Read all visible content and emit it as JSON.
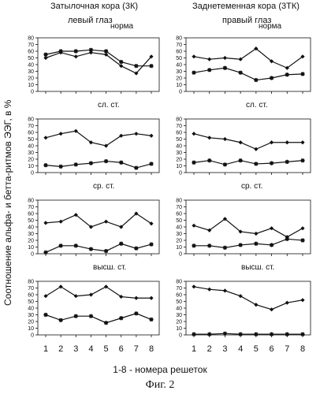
{
  "figure": {
    "columns": [
      {
        "title": "Затылочная кора (3К)",
        "eye": "левый глаз"
      },
      {
        "title": "Заднетеменная кора (3ТК)",
        "eye": "правый глаз"
      }
    ],
    "y_axis_label": "Соотношение альфа- и бетта-ритмов ЭЭГ, в %",
    "x_caption": "1-8 - номера решеток",
    "figure_caption": "Фиг. 2",
    "row_conditions": [
      "норма",
      "сл. ст.",
      "ср. ст.",
      "высш. ст."
    ]
  },
  "colors": {
    "line": "#111111",
    "background": "#ffffff"
  },
  "chart_data": [
    {
      "type": "line",
      "title": "норма",
      "column": "Затылочная кора (3К)",
      "x": [
        1,
        2,
        3,
        4,
        5,
        6,
        7,
        8
      ],
      "ylim": [
        0,
        80
      ],
      "yticks": [
        0,
        10,
        20,
        30,
        40,
        50,
        60,
        70,
        80
      ],
      "series": [
        {
          "marker": "diamond",
          "values": [
            50,
            58,
            52,
            58,
            55,
            38,
            27,
            52
          ]
        },
        {
          "marker": "star",
          "values": [
            55,
            60,
            60,
            62,
            60,
            44,
            38,
            38
          ]
        }
      ]
    },
    {
      "type": "line",
      "title": "норма",
      "column": "Заднетеменная кора (3ТК)",
      "x": [
        1,
        2,
        3,
        4,
        5,
        6,
        7,
        8
      ],
      "ylim": [
        0,
        80
      ],
      "yticks": [
        0,
        10,
        20,
        30,
        40,
        50,
        60,
        70,
        80
      ],
      "series": [
        {
          "marker": "diamond",
          "values": [
            52,
            48,
            50,
            48,
            64,
            45,
            35,
            52
          ]
        },
        {
          "marker": "star",
          "values": [
            28,
            32,
            35,
            28,
            17,
            20,
            25,
            26
          ]
        }
      ]
    },
    {
      "type": "line",
      "title": "сл. ст.",
      "column": "Затылочная кора (3К)",
      "x": [
        1,
        2,
        3,
        4,
        5,
        6,
        7,
        8
      ],
      "ylim": [
        0,
        80
      ],
      "yticks": [
        0,
        10,
        20,
        30,
        40,
        50,
        60,
        70,
        80
      ],
      "series": [
        {
          "marker": "diamond",
          "values": [
            52,
            58,
            62,
            45,
            40,
            55,
            58,
            55
          ]
        },
        {
          "marker": "star",
          "values": [
            11,
            9,
            12,
            14,
            17,
            15,
            7,
            13
          ]
        }
      ]
    },
    {
      "type": "line",
      "title": "сл. ст.",
      "column": "Заднетеменная кора (3ТК)",
      "x": [
        1,
        2,
        3,
        4,
        5,
        6,
        7,
        8
      ],
      "ylim": [
        0,
        80
      ],
      "yticks": [
        0,
        10,
        20,
        30,
        40,
        50,
        60,
        70,
        80
      ],
      "series": [
        {
          "marker": "diamond",
          "values": [
            58,
            52,
            50,
            45,
            35,
            45,
            45,
            45
          ]
        },
        {
          "marker": "star",
          "values": [
            15,
            18,
            12,
            18,
            13,
            14,
            16,
            18
          ]
        }
      ]
    },
    {
      "type": "line",
      "title": "ср. ст.",
      "column": "Затылочная кора (3К)",
      "x": [
        1,
        2,
        3,
        4,
        5,
        6,
        7,
        8
      ],
      "ylim": [
        0,
        80
      ],
      "yticks": [
        0,
        10,
        20,
        30,
        40,
        50,
        60,
        70,
        80
      ],
      "series": [
        {
          "marker": "diamond",
          "values": [
            46,
            48,
            58,
            40,
            48,
            40,
            60,
            45
          ]
        },
        {
          "marker": "star",
          "values": [
            2,
            12,
            12,
            7,
            4,
            15,
            8,
            14
          ]
        }
      ]
    },
    {
      "type": "line",
      "title": "ср. ст.",
      "column": "Заднетеменная кора (3ТК)",
      "x": [
        1,
        2,
        3,
        4,
        5,
        6,
        7,
        8
      ],
      "ylim": [
        0,
        80
      ],
      "yticks": [
        0,
        10,
        20,
        30,
        40,
        50,
        60,
        70,
        80
      ],
      "series": [
        {
          "marker": "diamond",
          "values": [
            42,
            35,
            52,
            33,
            30,
            38,
            25,
            38
          ]
        },
        {
          "marker": "star",
          "values": [
            12,
            12,
            9,
            13,
            15,
            13,
            22,
            20
          ]
        }
      ]
    },
    {
      "type": "line",
      "title": "высш. ст.",
      "column": "Затылочная кора (3К)",
      "x": [
        1,
        2,
        3,
        4,
        5,
        6,
        7,
        8
      ],
      "ylim": [
        0,
        80
      ],
      "yticks": [
        0,
        10,
        20,
        30,
        40,
        50,
        60,
        70,
        80
      ],
      "series": [
        {
          "marker": "diamond",
          "values": [
            58,
            72,
            58,
            60,
            72,
            57,
            55,
            55
          ]
        },
        {
          "marker": "star",
          "values": [
            30,
            22,
            28,
            28,
            18,
            25,
            32,
            23
          ]
        }
      ]
    },
    {
      "type": "line",
      "title": "высш. ст.",
      "column": "Заднетеменная кора (3ТК)",
      "x": [
        1,
        2,
        3,
        4,
        5,
        6,
        7,
        8
      ],
      "ylim": [
        0,
        80
      ],
      "yticks": [
        0,
        10,
        20,
        30,
        40,
        50,
        60,
        70,
        80
      ],
      "series": [
        {
          "marker": "diamond",
          "values": [
            72,
            68,
            66,
            58,
            45,
            38,
            48,
            52
          ]
        },
        {
          "marker": "star",
          "values": [
            1,
            1,
            2,
            1,
            1,
            1,
            1,
            1
          ]
        }
      ]
    }
  ]
}
